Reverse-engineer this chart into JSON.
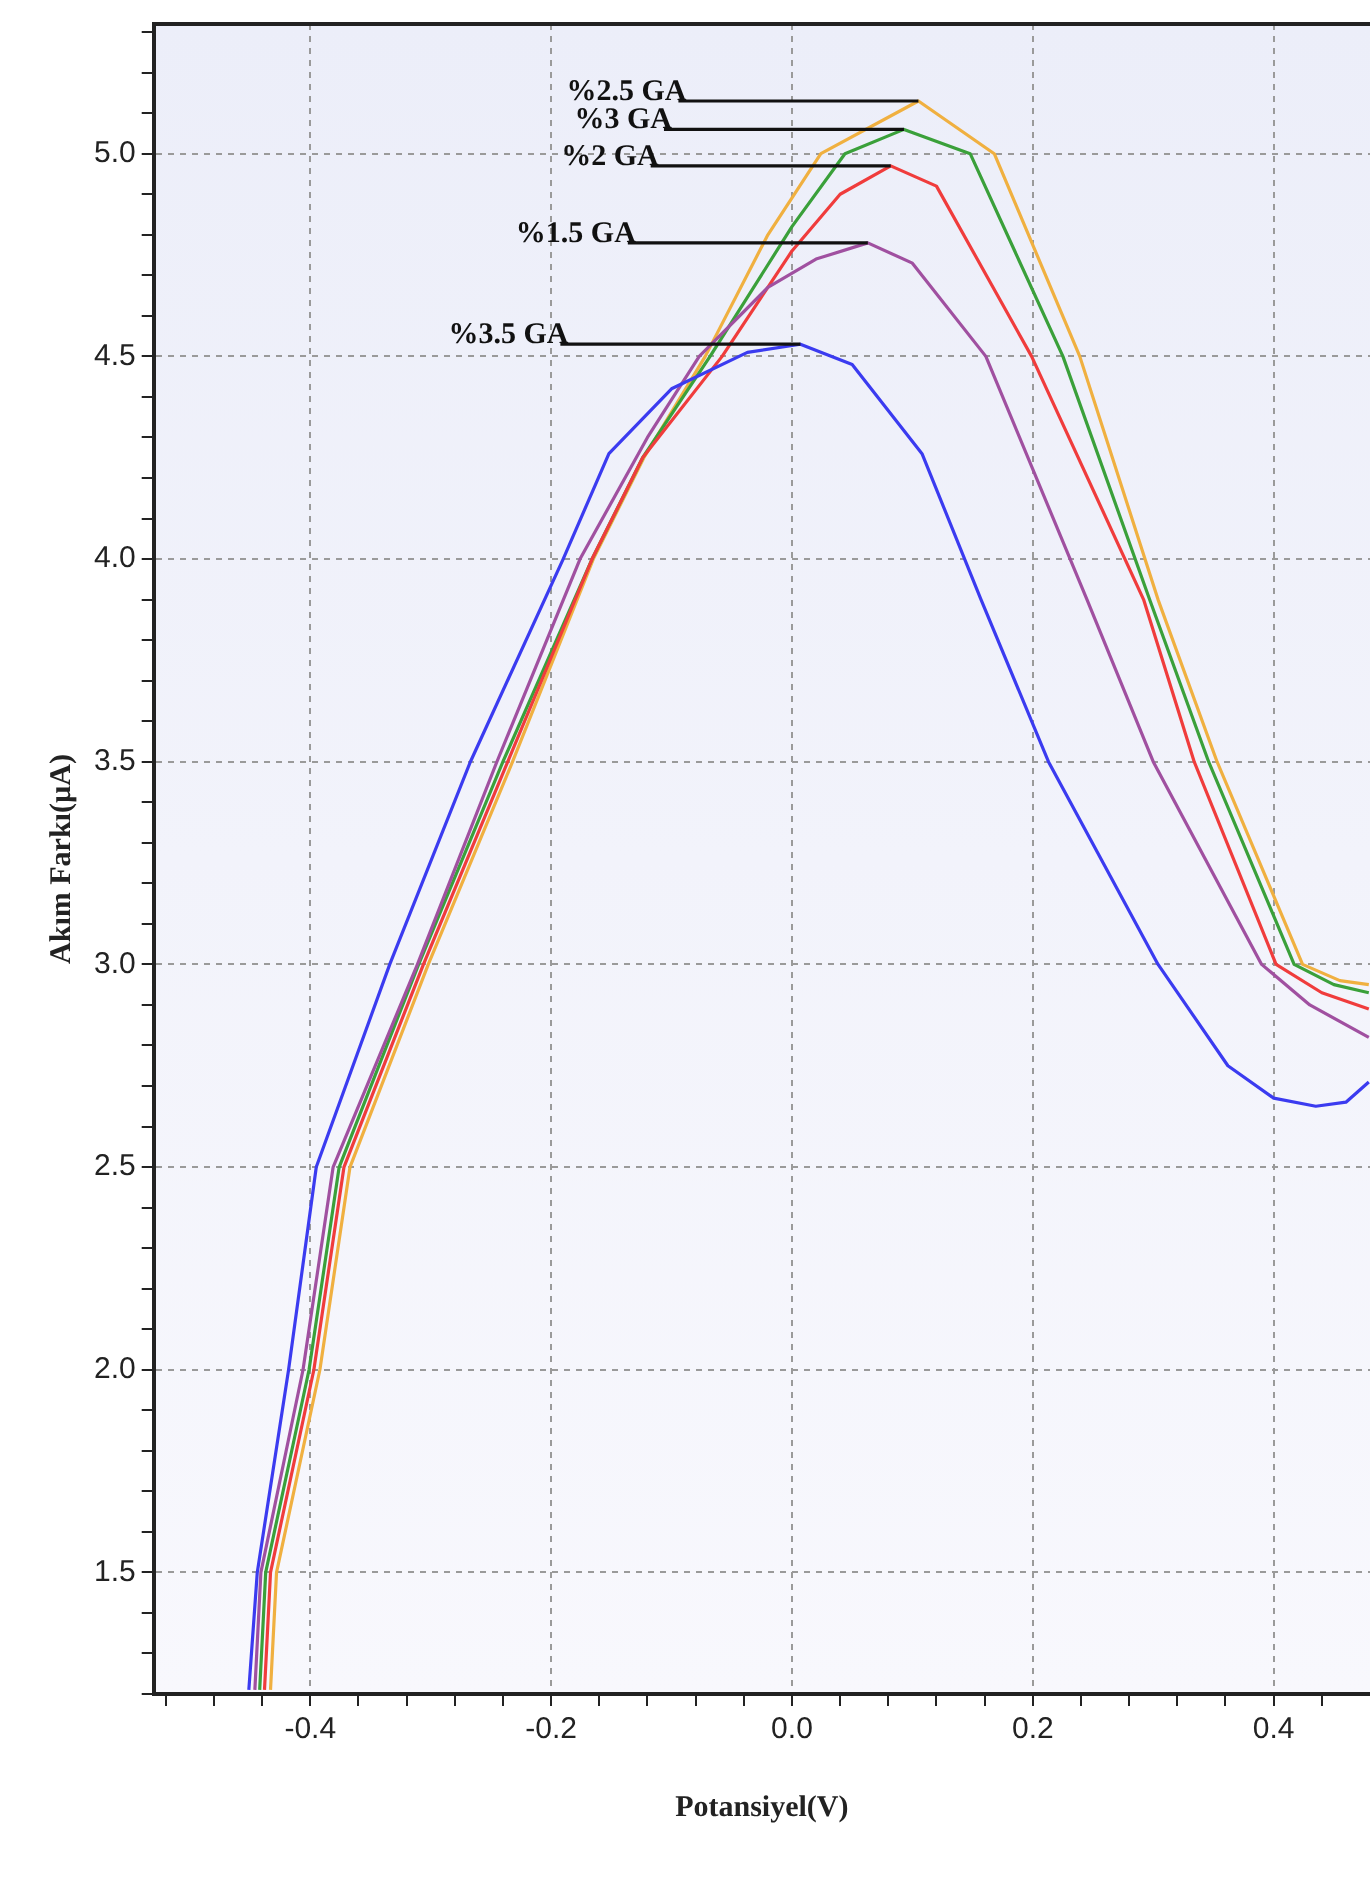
{
  "chart_data": {
    "type": "line",
    "xlabel": "Potansiyel(V)",
    "ylabel": "Akım Farkı(µA)",
    "marker": "none",
    "line_style": "solid",
    "grid": true,
    "legend": false,
    "xlim": [
      -0.53,
      0.48
    ],
    "ylim": [
      1.2,
      5.32
    ],
    "xticks": [
      {
        "value": -0.52,
        "label": null
      },
      {
        "value": -0.48,
        "label": null
      },
      {
        "value": -0.44,
        "label": null
      },
      -0.4,
      {
        "value": -0.36,
        "label": null
      },
      {
        "value": -0.32,
        "label": null
      },
      {
        "value": -0.28,
        "label": null
      },
      {
        "value": -0.24,
        "label": null
      },
      -0.2,
      {
        "value": -0.16,
        "label": null
      },
      {
        "value": -0.12,
        "label": null
      },
      {
        "value": -0.08,
        "label": null
      },
      {
        "value": -0.04,
        "label": null
      },
      {
        "value": 0,
        "label": "0.0"
      },
      {
        "value": 0.04,
        "label": null
      },
      {
        "value": 0.08,
        "label": null
      },
      {
        "value": 0.12,
        "label": null
      },
      {
        "value": 0.16,
        "label": null
      },
      0.2,
      {
        "value": 0.24,
        "label": null
      },
      {
        "value": 0.28,
        "label": null
      },
      {
        "value": 0.32,
        "label": null
      },
      {
        "value": 0.36,
        "label": null
      },
      0.4,
      {
        "value": 0.44,
        "label": null
      }
    ],
    "yticks": [
      {
        "value": 1.2,
        "label": null
      },
      {
        "value": 1.3,
        "label": null
      },
      {
        "value": 1.4,
        "label": null
      },
      1.5,
      {
        "value": 1.6,
        "label": null
      },
      {
        "value": 1.7,
        "label": null
      },
      {
        "value": 1.8,
        "label": null
      },
      {
        "value": 1.9,
        "label": null
      },
      {
        "value": 2,
        "label": "2.0"
      },
      {
        "value": 2.1,
        "label": null
      },
      {
        "value": 2.2,
        "label": null
      },
      {
        "value": 2.3,
        "label": null
      },
      {
        "value": 2.4,
        "label": null
      },
      2.5,
      {
        "value": 2.6,
        "label": null
      },
      {
        "value": 2.7,
        "label": null
      },
      {
        "value": 2.8,
        "label": null
      },
      {
        "value": 2.9,
        "label": null
      },
      {
        "value": 3,
        "label": "3.0"
      },
      {
        "value": 3.1,
        "label": null
      },
      {
        "value": 3.2,
        "label": null
      },
      {
        "value": 3.3,
        "label": null
      },
      {
        "value": 3.4,
        "label": null
      },
      3.5,
      {
        "value": 3.6,
        "label": null
      },
      {
        "value": 3.7,
        "label": null
      },
      {
        "value": 3.8,
        "label": null
      },
      {
        "value": 3.9,
        "label": null
      },
      {
        "value": 4,
        "label": "4.0"
      },
      {
        "value": 4.1,
        "label": null
      },
      {
        "value": 4.2,
        "label": null
      },
      {
        "value": 4.3,
        "label": null
      },
      {
        "value": 4.4,
        "label": null
      },
      4.5,
      {
        "value": 4.6,
        "label": null
      },
      {
        "value": 4.7,
        "label": null
      },
      {
        "value": 4.8,
        "label": null
      },
      {
        "value": 4.9,
        "label": null
      },
      {
        "value": 5,
        "label": "5.0"
      },
      {
        "value": 5.1,
        "label": null
      },
      {
        "value": 5.2,
        "label": null
      },
      {
        "value": 5.3,
        "label": null
      }
    ],
    "annotations": [
      {
        "text": "%2.5 GA",
        "x": 0.105,
        "y": 5.13
      },
      {
        "text": "%3 GA",
        "x": 0.093,
        "y": 5.06
      },
      {
        "text": "%2 GA",
        "x": 0.082,
        "y": 4.97
      },
      {
        "text": "%1.5 GA",
        "x": 0.063,
        "y": 4.78
      },
      {
        "text": "%3.5 GA",
        "x": 0.007,
        "y": 4.53
      }
    ],
    "series": [
      {
        "color": "#3b3bf0",
        "x": [
          -0.451,
          -0.444,
          -0.418,
          -0.395,
          -0.334,
          -0.267,
          -0.19,
          -0.152,
          -0.1,
          -0.037,
          0.007,
          0.05,
          0.108,
          0.157,
          0.213,
          0.304,
          0.362,
          0.4,
          0.435,
          0.46,
          0.479
        ],
        "values": [
          1.21,
          1.5,
          2.0,
          2.5,
          3.0,
          3.5,
          4.0,
          4.26,
          4.42,
          4.51,
          4.53,
          4.48,
          4.26,
          3.9,
          3.5,
          3.0,
          2.75,
          2.67,
          2.65,
          2.66,
          2.71
        ]
      },
      {
        "color": "#a050a0",
        "x": [
          -0.446,
          -0.441,
          -0.406,
          -0.381,
          -0.311,
          -0.245,
          -0.176,
          -0.12,
          -0.077,
          -0.02,
          0.02,
          0.063,
          0.1,
          0.161,
          0.245,
          0.3,
          0.39,
          0.43,
          0.479
        ],
        "values": [
          1.21,
          1.5,
          2.0,
          2.5,
          3.0,
          3.5,
          4.0,
          4.3,
          4.5,
          4.67,
          4.74,
          4.78,
          4.73,
          4.5,
          3.9,
          3.5,
          3.0,
          2.9,
          2.82
        ]
      },
      {
        "color": "#f03c3c",
        "x": [
          -0.438,
          -0.433,
          -0.397,
          -0.372,
          -0.306,
          -0.236,
          -0.166,
          -0.124,
          -0.058,
          0.0,
          0.04,
          0.082,
          0.12,
          0.199,
          0.292,
          0.334,
          0.402,
          0.44,
          0.479
        ],
        "values": [
          1.21,
          1.5,
          2.0,
          2.5,
          3.0,
          3.5,
          4.0,
          4.25,
          4.5,
          4.76,
          4.9,
          4.97,
          4.92,
          4.5,
          3.9,
          3.5,
          3.0,
          2.93,
          2.89
        ]
      },
      {
        "color": "#3aa03a",
        "x": [
          -0.442,
          -0.437,
          -0.401,
          -0.376,
          -0.31,
          -0.24,
          -0.166,
          -0.124,
          -0.068,
          0.0,
          0.044,
          0.093,
          0.148,
          0.225,
          0.297,
          0.346,
          0.417,
          0.45,
          0.479
        ],
        "values": [
          1.21,
          1.5,
          2.0,
          2.5,
          3.0,
          3.5,
          4.0,
          4.25,
          4.5,
          4.82,
          5.0,
          5.06,
          5.0,
          4.5,
          3.9,
          3.5,
          3.0,
          2.95,
          2.93
        ]
      },
      {
        "color": "#f0b040",
        "x": [
          -0.433,
          -0.428,
          -0.392,
          -0.367,
          -0.302,
          -0.232,
          -0.165,
          -0.123,
          -0.072,
          -0.02,
          0.024,
          0.105,
          0.168,
          0.239,
          0.304,
          0.353,
          0.424,
          0.455,
          0.479
        ],
        "values": [
          1.21,
          1.5,
          2.0,
          2.5,
          3.0,
          3.5,
          4.0,
          4.25,
          4.5,
          4.8,
          5.0,
          5.13,
          5.0,
          4.5,
          3.9,
          3.5,
          3.0,
          2.96,
          2.95
        ]
      }
    ]
  }
}
